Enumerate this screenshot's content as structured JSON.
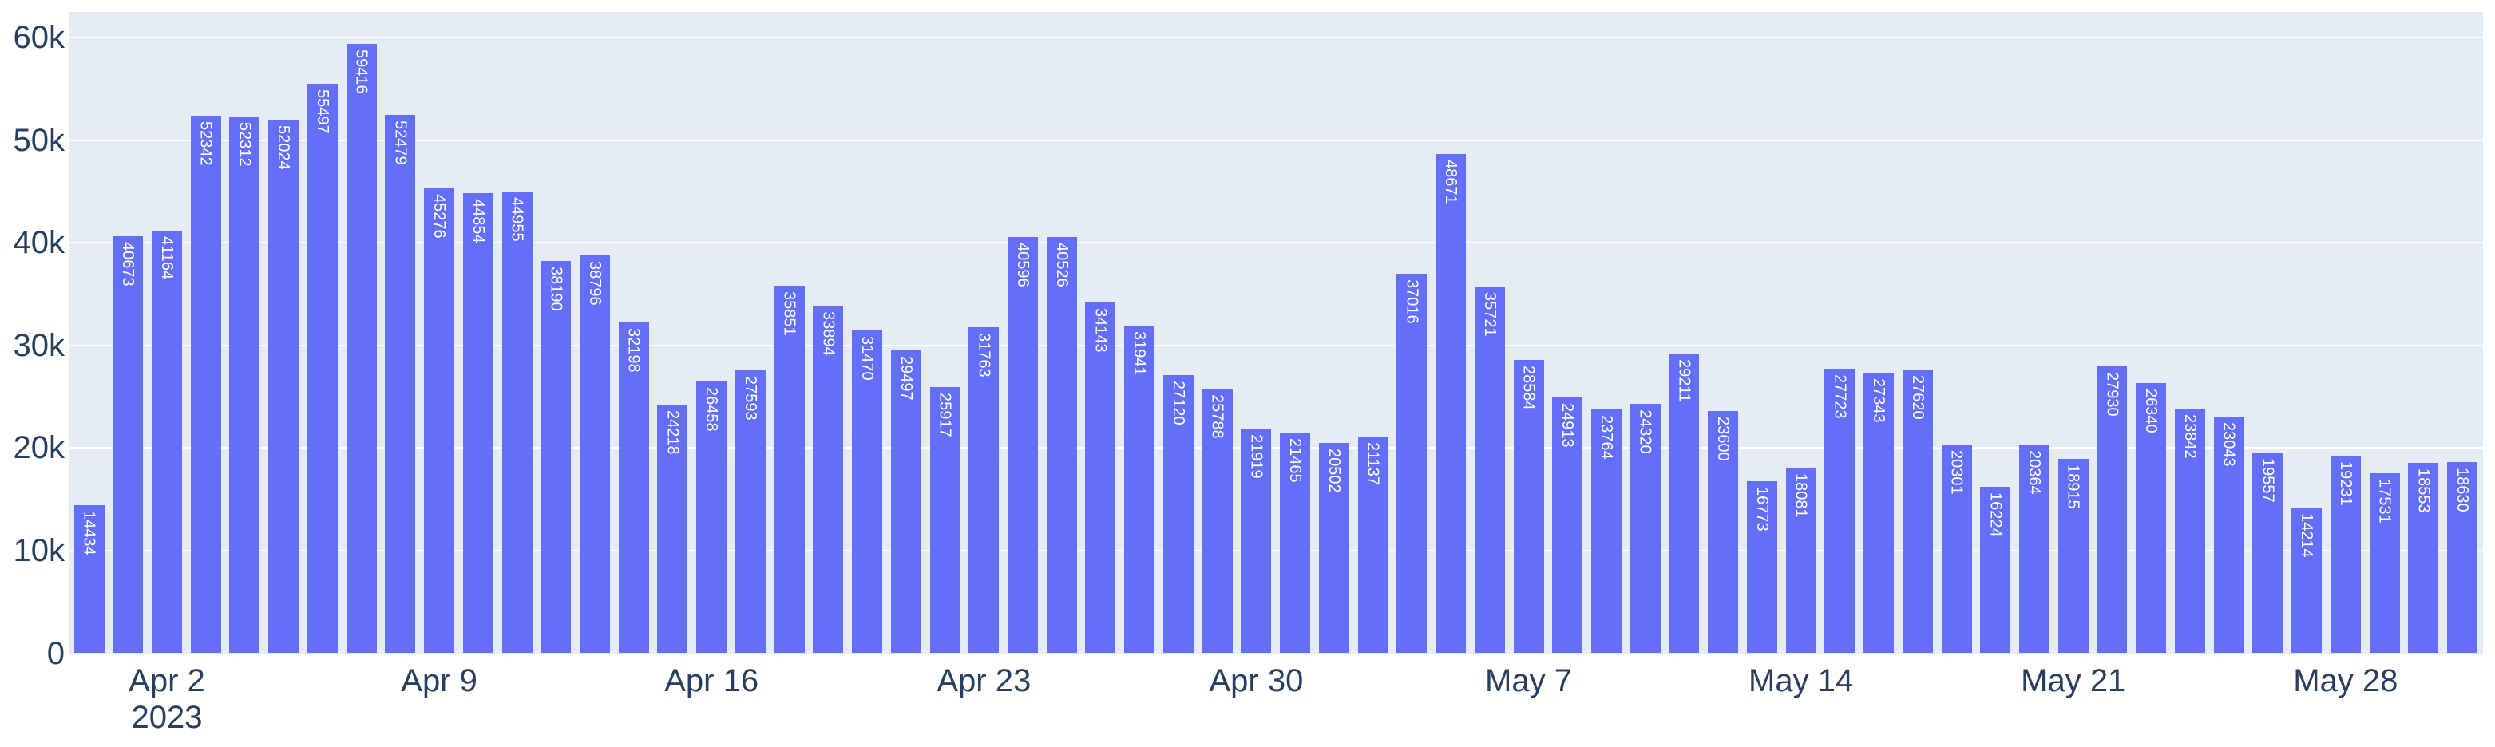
{
  "chart_data": {
    "type": "bar",
    "title": "",
    "xlabel": "",
    "ylabel": "",
    "grid": true,
    "legend": null,
    "ylim": [
      0,
      62500
    ],
    "values": [
      14434,
      40673,
      41164,
      52342,
      52312,
      52024,
      55497,
      59416,
      52479,
      45276,
      44854,
      44955,
      38190,
      38796,
      32198,
      24218,
      26458,
      27593,
      35851,
      33894,
      31470,
      29497,
      25917,
      31763,
      40596,
      40526,
      34143,
      31941,
      27120,
      25788,
      21919,
      21465,
      20502,
      21137,
      37016,
      48671,
      35721,
      28584,
      24913,
      23764,
      24320,
      29211,
      23600,
      16773,
      18081,
      27723,
      27343,
      27620,
      20301,
      16224,
      20364,
      18915,
      27930,
      26340,
      23842,
      23043,
      19557,
      14214,
      19231,
      17531,
      18553,
      18630
    ],
    "bar_value_labels": [
      "14434",
      "40673",
      "41164",
      "52342",
      "52312",
      "52024",
      "55497",
      "59416",
      "52479",
      "45276",
      "44854",
      "44955",
      "38190",
      "38796",
      "32198",
      "24218",
      "26458",
      "27593",
      "35851",
      "33894",
      "31470",
      "29497",
      "25917",
      "31763",
      "40596",
      "40526",
      "34143",
      "31941",
      "27120",
      "25788",
      "21919",
      "21465",
      "20502",
      "21137",
      "37016",
      "48671",
      "35721",
      "28584",
      "24913",
      "23764",
      "24320",
      "29211",
      "23600",
      "16773",
      "18081",
      "27723",
      "27343",
      "27620",
      "20301",
      "16224",
      "20364",
      "18915",
      "27930",
      "26340",
      "23842",
      "23043",
      "19557",
      "14214",
      "19231",
      "17531",
      "18553",
      "18630"
    ],
    "xticks": [
      {
        "bar_index": 2,
        "label": "Apr 2",
        "sublabel": "2023"
      },
      {
        "bar_index": 9,
        "label": "Apr 9",
        "sublabel": ""
      },
      {
        "bar_index": 16,
        "label": "Apr 16",
        "sublabel": ""
      },
      {
        "bar_index": 23,
        "label": "Apr 23",
        "sublabel": ""
      },
      {
        "bar_index": 30,
        "label": "Apr 30",
        "sublabel": ""
      },
      {
        "bar_index": 37,
        "label": "May 7",
        "sublabel": ""
      },
      {
        "bar_index": 44,
        "label": "May 14",
        "sublabel": ""
      },
      {
        "bar_index": 51,
        "label": "May 21",
        "sublabel": ""
      },
      {
        "bar_index": 58,
        "label": "May 28",
        "sublabel": ""
      }
    ],
    "yticks": [
      {
        "value": 0,
        "label": "0"
      },
      {
        "value": 10000,
        "label": "10k"
      },
      {
        "value": 20000,
        "label": "20k"
      },
      {
        "value": 30000,
        "label": "30k"
      },
      {
        "value": 40000,
        "label": "40k"
      },
      {
        "value": 50000,
        "label": "50k"
      },
      {
        "value": 60000,
        "label": "60k"
      }
    ],
    "colors": {
      "bar": "#636efa",
      "plot_background": "#e5ecf6",
      "gridline": "#ffffff",
      "tick_text": "#2a3f5f",
      "bar_label_text": "#ffffff",
      "page_background": "#ffffff"
    },
    "legend_position": "none"
  }
}
